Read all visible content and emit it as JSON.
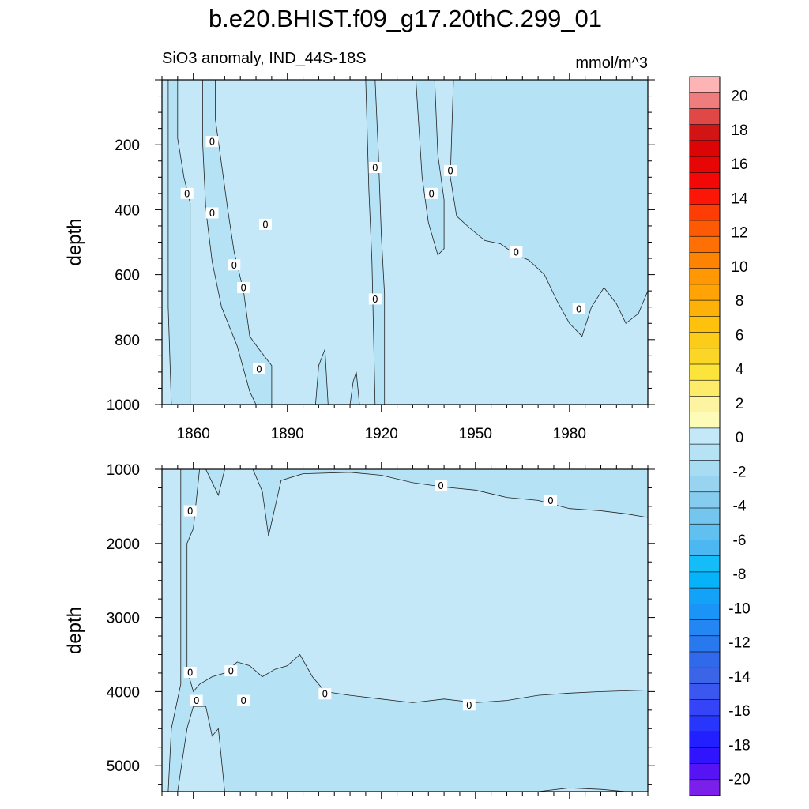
{
  "chart_data": {
    "type": "heatmap",
    "title": "b.e20.BHIST.f09_g17.20thC.299_01",
    "subtitle_left": "SiO3 anomaly, IND_44S-18S",
    "subtitle_right": "mmol/m^3",
    "xlim": [
      1850,
      2005
    ],
    "x_ticks": [
      1860,
      1890,
      1920,
      1950,
      1980
    ],
    "contour_label": "0",
    "panels": [
      {
        "name": "upper",
        "ylabel": "depth",
        "ylim": [
          0,
          1000
        ],
        "y_ticks": [
          200,
          400,
          600,
          800,
          1000
        ],
        "background_level": 0.5,
        "negative_regions": [
          [
            [
              1852,
              0
            ],
            [
              1855,
              0
            ],
            [
              1855,
              180
            ],
            [
              1857,
              300
            ],
            [
              1859,
              380
            ],
            [
              1859,
              1000
            ],
            [
              1853,
              1000
            ],
            [
              1852,
              700
            ]
          ],
          [
            [
              1863,
              0
            ],
            [
              1867,
              0
            ],
            [
              1867,
              120
            ],
            [
              1869,
              260
            ],
            [
              1871,
              400
            ],
            [
              1873,
              530
            ],
            [
              1876,
              650
            ],
            [
              1878,
              790
            ],
            [
              1881,
              830
            ],
            [
              1885,
              880
            ],
            [
              1885,
              1000
            ],
            [
              1880,
              1000
            ],
            [
              1878,
              960
            ],
            [
              1874,
              820
            ],
            [
              1869,
              700
            ],
            [
              1866,
              560
            ],
            [
              1864,
              400
            ],
            [
              1863,
              200
            ]
          ],
          [
            [
              1900,
              880
            ],
            [
              1902,
              830
            ],
            [
              1903,
              1000
            ],
            [
              1899,
              1000
            ]
          ],
          [
            [
              1911,
              930
            ],
            [
              1912,
              900
            ],
            [
              1913,
              1000
            ],
            [
              1910,
              1000
            ]
          ],
          [
            [
              1915,
              0
            ],
            [
              1918,
              0
            ],
            [
              1919,
              220
            ],
            [
              1920,
              480
            ],
            [
              1921,
              660
            ],
            [
              1921,
              1000
            ],
            [
              1918,
              1000
            ],
            [
              1917,
              560
            ],
            [
              1916,
              340
            ]
          ],
          [
            [
              1931,
              0
            ],
            [
              1937,
              0
            ],
            [
              1938,
              230
            ],
            [
              1940,
              370
            ],
            [
              1940,
              520
            ],
            [
              1938,
              540
            ],
            [
              1935,
              440
            ],
            [
              1933,
              300
            ]
          ],
          [
            [
              1943,
              0
            ],
            [
              2005,
              0
            ],
            [
              2005,
              650
            ],
            [
              2002,
              720
            ],
            [
              1998,
              750
            ],
            [
              1995,
              690
            ],
            [
              1991,
              640
            ],
            [
              1987,
              700
            ],
            [
              1984,
              790
            ],
            [
              1980,
              750
            ],
            [
              1976,
              680
            ],
            [
              1972,
              600
            ],
            [
              1967,
              555
            ],
            [
              1963,
              540
            ],
            [
              1958,
              505
            ],
            [
              1953,
              495
            ],
            [
              1948,
              455
            ],
            [
              1944,
              420
            ],
            [
              1942,
              300
            ]
          ]
        ],
        "contour_labels": [
          [
            1858,
            350
          ],
          [
            1866,
            190
          ],
          [
            1866,
            410
          ],
          [
            1883,
            445
          ],
          [
            1918,
            270
          ],
          [
            1936,
            350
          ],
          [
            1942,
            280
          ],
          [
            1873,
            570
          ],
          [
            1876,
            640
          ],
          [
            1918,
            675
          ],
          [
            1963,
            530
          ],
          [
            1983,
            705
          ],
          [
            1881,
            890
          ]
        ]
      },
      {
        "name": "lower",
        "ylabel": "depth",
        "ylim": [
          1000,
          5350
        ],
        "y_ticks": [
          1000,
          2000,
          3000,
          4000,
          5000
        ],
        "background_level": 0.5,
        "negative_regions": [
          [
            [
              1856,
              1000
            ],
            [
              2005,
              1000
            ],
            [
              2005,
              1650
            ],
            [
              1998,
              1600
            ],
            [
              1990,
              1560
            ],
            [
              1980,
              1530
            ],
            [
              1970,
              1420
            ],
            [
              1960,
              1380
            ],
            [
              1950,
              1280
            ],
            [
              1940,
              1240
            ],
            [
              1930,
              1180
            ],
            [
              1920,
              1080
            ],
            [
              1910,
              1040
            ],
            [
              1895,
              1060
            ],
            [
              1888,
              1150
            ],
            [
              1884,
              1900
            ],
            [
              1882,
              1300
            ],
            [
              1879,
              1000
            ],
            [
              1870,
              1000
            ],
            [
              1868,
              1350
            ],
            [
              1864,
              1000
            ],
            [
              1862,
              1000
            ],
            [
              1860,
              1800
            ],
            [
              1858,
              2000
            ],
            [
              1858,
              3700
            ],
            [
              1860,
              4000
            ],
            [
              1862,
              3900
            ],
            [
              1866,
              3800
            ],
            [
              1870,
              3750
            ],
            [
              1874,
              3600
            ],
            [
              1878,
              3650
            ],
            [
              1882,
              3800
            ],
            [
              1886,
              3700
            ],
            [
              1890,
              3650
            ],
            [
              1894,
              3500
            ],
            [
              1898,
              3800
            ],
            [
              1902,
              4000
            ],
            [
              1910,
              4050
            ],
            [
              1920,
              4100
            ],
            [
              1930,
              4150
            ],
            [
              1940,
              4100
            ],
            [
              1950,
              4150
            ],
            [
              1960,
              4120
            ],
            [
              1970,
              4050
            ],
            [
              1980,
              4020
            ],
            [
              1990,
              4000
            ],
            [
              2005,
              3980
            ],
            [
              2005,
              5350
            ],
            [
              1998,
              5350
            ],
            [
              1990,
              5320
            ],
            [
              1980,
              5300
            ],
            [
              1970,
              5350
            ],
            [
              1955,
              5350
            ],
            [
              1940,
              5350
            ],
            [
              1930,
              5350
            ],
            [
              1920,
              5350
            ],
            [
              1870,
              5350
            ],
            [
              1868,
              4500
            ],
            [
              1866,
              4600
            ],
            [
              1864,
              4200
            ],
            [
              1860,
              4200
            ],
            [
              1858,
              4500
            ],
            [
              1855,
              5350
            ],
            [
              1852,
              5350
            ],
            [
              1853,
              4500
            ],
            [
              1856,
              3900
            ]
          ]
        ],
        "contour_labels": [
          [
            1859,
            1560
          ],
          [
            1872,
            3720
          ],
          [
            1859,
            3740
          ],
          [
            1861,
            4120
          ],
          [
            1876,
            4120
          ],
          [
            1902,
            4030
          ],
          [
            1948,
            4180
          ],
          [
            1939,
            1220
          ],
          [
            1974,
            1420
          ]
        ]
      }
    ],
    "colorbar": {
      "labels": [
        "20",
        "18",
        "16",
        "14",
        "12",
        "10",
        "8",
        "6",
        "4",
        "2",
        "0",
        "-2",
        "-4",
        "-6",
        "-8",
        "-10",
        "-12",
        "-14",
        "-16",
        "-18",
        "-20"
      ],
      "colors": [
        "#fcb4b4",
        "#f07d7d",
        "#e04848",
        "#d21414",
        "#dc0505",
        "#e80505",
        "#f30707",
        "#fc1608",
        "#fd3c06",
        "#fe5a05",
        "#fe7004",
        "#fd8402",
        "#ff9804",
        "#ffa404",
        "#fdb20a",
        "#fec20c",
        "#fbcc1a",
        "#fcd626",
        "#fce43a",
        "#fcec6a",
        "#fdf4a2",
        "#fdfbb8",
        "#c4e8f8",
        "#b6e2f6",
        "#a8dcf2",
        "#98d4f0",
        "#86ccee",
        "#74c6ee",
        "#60c0f0",
        "#4cb8f2",
        "#14bcf8",
        "#06b2f8",
        "#12a2f8",
        "#1a94f6",
        "#2486f2",
        "#2878ee",
        "#306aea",
        "#3c64e6",
        "#3c56f0",
        "#3644f8",
        "#2836fc",
        "#2220fe",
        "#3014fe",
        "#5614f4",
        "#7a20ea"
      ],
      "level_min": -22,
      "level_step": 1
    }
  }
}
